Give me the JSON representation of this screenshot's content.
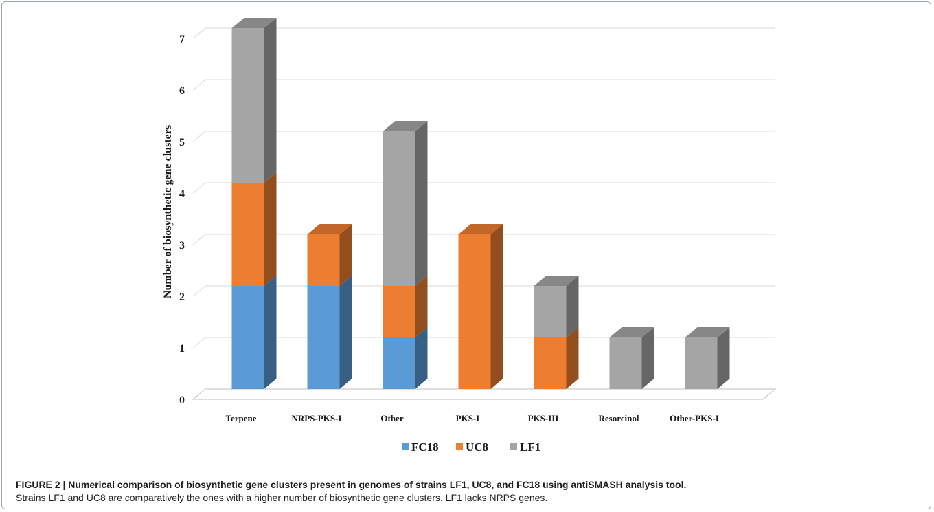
{
  "chart_data": {
    "type": "bar",
    "stacked": true,
    "style": "3d",
    "categories": [
      "Terpene",
      "NRPS-PKS-I",
      "Other",
      "PKS-I",
      "PKS-III",
      "Resorcinol",
      "Other-PKS-I"
    ],
    "series": [
      {
        "name": "FC18",
        "color": "#5b9bd5",
        "values": [
          2,
          2,
          1,
          0,
          0,
          0,
          0
        ]
      },
      {
        "name": "UC8",
        "color": "#ed7d31",
        "values": [
          2,
          1,
          1,
          3,
          1,
          0,
          0
        ]
      },
      {
        "name": "LF1",
        "color": "#a5a5a5",
        "values": [
          3,
          0,
          3,
          0,
          1,
          1,
          1
        ]
      }
    ],
    "yticks": [
      "0",
      "1",
      "2",
      "3",
      "4",
      "5",
      "6",
      "7"
    ],
    "ylabel": "Number of biosynthetic gene clusters",
    "xlabel": "",
    "ylim": [
      0,
      7
    ],
    "grid": true,
    "legend_position": "bottom"
  },
  "caption": {
    "label": "FIGURE 2 | Numerical comparison of biosynthetic gene clusters present in genomes of strains LF1, UC8, and FC18 using antiSMASH analysis tool.",
    "text": "Strains LF1 and UC8 are comparatively the ones with a higher number of biosynthetic gene clusters. LF1 lacks NRPS genes."
  }
}
